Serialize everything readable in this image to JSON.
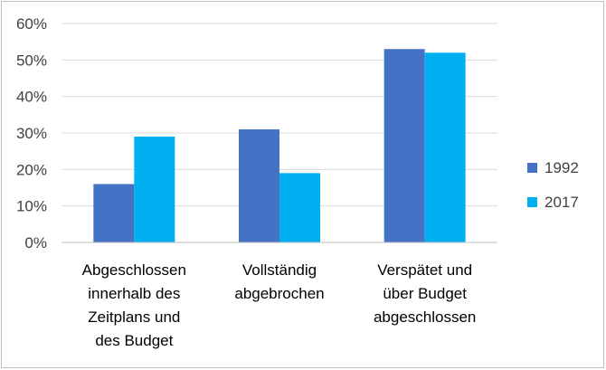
{
  "chart_data": {
    "type": "bar",
    "title": "",
    "xlabel": "",
    "ylabel": "",
    "ylim": [
      0,
      0.6
    ],
    "yticks": [
      0,
      0.1,
      0.2,
      0.3,
      0.4,
      0.5,
      0.6
    ],
    "ytick_labels": [
      "0%",
      "10%",
      "20%",
      "30%",
      "40%",
      "50%",
      "60%"
    ],
    "grid": true,
    "legend_position": "right",
    "categories": [
      [
        "Abgeschlossen",
        "innerhalb des",
        "Zeitplans und",
        "des Budget"
      ],
      [
        "Vollständig",
        "abgebrochen"
      ],
      [
        "Verspätet und",
        "über Budget",
        "abgeschlossen"
      ]
    ],
    "series": [
      {
        "name": "1992",
        "color": "#4472c4",
        "values": [
          0.16,
          0.31,
          0.53
        ]
      },
      {
        "name": "2017",
        "color": "#00b0f0",
        "values": [
          0.29,
          0.19,
          0.52
        ]
      }
    ]
  }
}
